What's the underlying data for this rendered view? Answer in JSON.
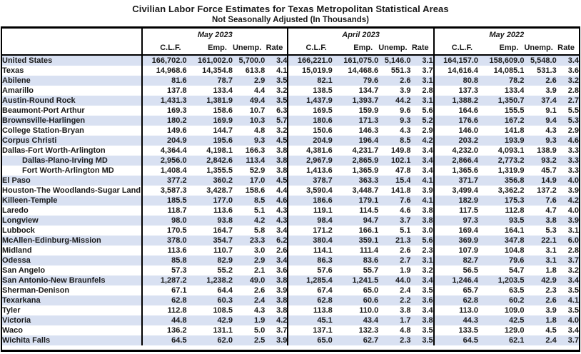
{
  "title": "Civilian Labor Force Estimates for Texas Metropolitan Statistical Areas",
  "subtitle": "Not Seasonally Adjusted (In Thousands)",
  "colors": {
    "row_shade": "#d9e1f2",
    "border": "#000000",
    "text": "#1a1a1a",
    "background": "#ffffff"
  },
  "table": {
    "groups": [
      {
        "label": "May 2023"
      },
      {
        "label": "April 2023"
      },
      {
        "label": "May 2022"
      }
    ],
    "columns": [
      "C.L.F.",
      "Emp.",
      "Unemp.",
      "Rate"
    ],
    "rows": [
      {
        "area": "United States",
        "indent": false,
        "values": [
          [
            "166,702.0",
            "161,002.0",
            "5,700.0",
            "3.4"
          ],
          [
            "166,221.0",
            "161,075.0",
            "5,146.0",
            "3.1"
          ],
          [
            "164,157.0",
            "158,609.0",
            "5,548.0",
            "3.4"
          ]
        ]
      },
      {
        "area": "Texas",
        "indent": false,
        "values": [
          [
            "14,968.6",
            "14,354.8",
            "613.8",
            "4.1"
          ],
          [
            "15,019.9",
            "14,468.6",
            "551.3",
            "3.7"
          ],
          [
            "14,616.4",
            "14,085.1",
            "531.3",
            "3.6"
          ]
        ]
      },
      {
        "area": "Abilene",
        "indent": false,
        "values": [
          [
            "81.6",
            "78.7",
            "2.9",
            "3.5"
          ],
          [
            "82.1",
            "79.6",
            "2.6",
            "3.1"
          ],
          [
            "80.8",
            "78.2",
            "2.6",
            "3.2"
          ]
        ]
      },
      {
        "area": "Amarillo",
        "indent": false,
        "values": [
          [
            "137.8",
            "133.4",
            "4.4",
            "3.2"
          ],
          [
            "138.5",
            "134.7",
            "3.9",
            "2.8"
          ],
          [
            "137.3",
            "133.4",
            "3.9",
            "2.8"
          ]
        ]
      },
      {
        "area": "Austin-Round Rock",
        "indent": false,
        "values": [
          [
            "1,431.3",
            "1,381.9",
            "49.4",
            "3.5"
          ],
          [
            "1,437.9",
            "1,393.7",
            "44.2",
            "3.1"
          ],
          [
            "1,388.2",
            "1,350.7",
            "37.4",
            "2.7"
          ]
        ]
      },
      {
        "area": "Beaumont-Port Arthur",
        "indent": false,
        "values": [
          [
            "169.3",
            "158.6",
            "10.7",
            "6.3"
          ],
          [
            "169.5",
            "159.9",
            "9.6",
            "5.6"
          ],
          [
            "164.6",
            "155.5",
            "9.1",
            "5.5"
          ]
        ]
      },
      {
        "area": "Brownsville-Harlingen",
        "indent": false,
        "values": [
          [
            "180.2",
            "169.9",
            "10.3",
            "5.7"
          ],
          [
            "180.6",
            "171.3",
            "9.3",
            "5.2"
          ],
          [
            "176.6",
            "167.2",
            "9.4",
            "5.3"
          ]
        ]
      },
      {
        "area": "College Station-Bryan",
        "indent": false,
        "values": [
          [
            "149.6",
            "144.7",
            "4.8",
            "3.2"
          ],
          [
            "150.6",
            "146.3",
            "4.3",
            "2.9"
          ],
          [
            "146.0",
            "141.8",
            "4.3",
            "2.9"
          ]
        ]
      },
      {
        "area": "Corpus Christi",
        "indent": false,
        "values": [
          [
            "204.9",
            "195.6",
            "9.3",
            "4.5"
          ],
          [
            "204.9",
            "196.4",
            "8.5",
            "4.2"
          ],
          [
            "203.2",
            "193.9",
            "9.3",
            "4.6"
          ]
        ]
      },
      {
        "area": "Dallas-Fort Worth-Arlington",
        "indent": false,
        "values": [
          [
            "4,364.4",
            "4,198.1",
            "166.3",
            "3.8"
          ],
          [
            "4,381.6",
            "4,231.7",
            "149.8",
            "3.4"
          ],
          [
            "4,232.0",
            "4,093.1",
            "138.9",
            "3.3"
          ]
        ]
      },
      {
        "area": "Dallas-Plano-Irving MD",
        "indent": true,
        "values": [
          [
            "2,956.0",
            "2,842.6",
            "113.4",
            "3.8"
          ],
          [
            "2,967.9",
            "2,865.9",
            "102.1",
            "3.4"
          ],
          [
            "2,866.4",
            "2,773.2",
            "93.2",
            "3.3"
          ]
        ]
      },
      {
        "area": "Fort Worth-Arlington MD",
        "indent": true,
        "values": [
          [
            "1,408.4",
            "1,355.5",
            "52.9",
            "3.8"
          ],
          [
            "1,413.6",
            "1,365.9",
            "47.8",
            "3.4"
          ],
          [
            "1,365.6",
            "1,319.9",
            "45.7",
            "3.3"
          ]
        ]
      },
      {
        "area": "El Paso",
        "indent": false,
        "values": [
          [
            "377.2",
            "360.2",
            "17.0",
            "4.5"
          ],
          [
            "378.7",
            "363.3",
            "15.4",
            "4.1"
          ],
          [
            "371.7",
            "356.8",
            "14.9",
            "4.0"
          ]
        ]
      },
      {
        "area": "Houston-The Woodlands-Sugar Land",
        "indent": false,
        "values": [
          [
            "3,587.3",
            "3,428.7",
            "158.6",
            "4.4"
          ],
          [
            "3,590.4",
            "3,448.7",
            "141.8",
            "3.9"
          ],
          [
            "3,499.4",
            "3,362.2",
            "137.2",
            "3.9"
          ]
        ]
      },
      {
        "area": "Killeen-Temple",
        "indent": false,
        "values": [
          [
            "185.5",
            "177.0",
            "8.5",
            "4.6"
          ],
          [
            "186.6",
            "179.1",
            "7.6",
            "4.1"
          ],
          [
            "182.9",
            "175.3",
            "7.6",
            "4.2"
          ]
        ]
      },
      {
        "area": "Laredo",
        "indent": false,
        "values": [
          [
            "118.7",
            "113.6",
            "5.1",
            "4.3"
          ],
          [
            "119.1",
            "114.5",
            "4.6",
            "3.8"
          ],
          [
            "117.5",
            "112.8",
            "4.7",
            "4.0"
          ]
        ]
      },
      {
        "area": "Longview",
        "indent": false,
        "values": [
          [
            "98.0",
            "93.8",
            "4.2",
            "4.3"
          ],
          [
            "98.4",
            "94.7",
            "3.7",
            "3.8"
          ],
          [
            "97.3",
            "93.5",
            "3.8",
            "3.9"
          ]
        ]
      },
      {
        "area": "Lubbock",
        "indent": false,
        "values": [
          [
            "170.5",
            "164.7",
            "5.8",
            "3.4"
          ],
          [
            "171.2",
            "166.1",
            "5.1",
            "3.0"
          ],
          [
            "169.4",
            "164.1",
            "5.3",
            "3.1"
          ]
        ]
      },
      {
        "area": "McAllen-Edinburg-Mission",
        "indent": false,
        "values": [
          [
            "378.0",
            "354.7",
            "23.3",
            "6.2"
          ],
          [
            "380.4",
            "359.1",
            "21.3",
            "5.6"
          ],
          [
            "369.9",
            "347.8",
            "22.1",
            "6.0"
          ]
        ]
      },
      {
        "area": "Midland",
        "indent": false,
        "values": [
          [
            "113.6",
            "110.7",
            "3.0",
            "2.6"
          ],
          [
            "114.1",
            "111.4",
            "2.6",
            "2.3"
          ],
          [
            "107.9",
            "104.8",
            "3.1",
            "2.8"
          ]
        ]
      },
      {
        "area": "Odessa",
        "indent": false,
        "values": [
          [
            "85.8",
            "82.9",
            "2.9",
            "3.4"
          ],
          [
            "86.3",
            "83.6",
            "2.7",
            "3.1"
          ],
          [
            "82.7",
            "79.6",
            "3.1",
            "3.7"
          ]
        ]
      },
      {
        "area": "San Angelo",
        "indent": false,
        "values": [
          [
            "57.3",
            "55.2",
            "2.1",
            "3.6"
          ],
          [
            "57.6",
            "55.7",
            "1.9",
            "3.2"
          ],
          [
            "56.5",
            "54.7",
            "1.8",
            "3.2"
          ]
        ]
      },
      {
        "area": "San Antonio-New Braunfels",
        "indent": false,
        "values": [
          [
            "1,287.2",
            "1,238.2",
            "49.0",
            "3.8"
          ],
          [
            "1,285.4",
            "1,241.5",
            "44.0",
            "3.4"
          ],
          [
            "1,246.4",
            "1,203.5",
            "42.9",
            "3.4"
          ]
        ]
      },
      {
        "area": "Sherman-Denison",
        "indent": false,
        "values": [
          [
            "67.1",
            "64.4",
            "2.6",
            "3.9"
          ],
          [
            "67.4",
            "65.0",
            "2.4",
            "3.5"
          ],
          [
            "65.7",
            "63.5",
            "2.3",
            "3.5"
          ]
        ]
      },
      {
        "area": "Texarkana",
        "indent": false,
        "values": [
          [
            "62.8",
            "60.3",
            "2.4",
            "3.8"
          ],
          [
            "62.8",
            "60.6",
            "2.2",
            "3.6"
          ],
          [
            "62.8",
            "60.2",
            "2.6",
            "4.1"
          ]
        ]
      },
      {
        "area": "Tyler",
        "indent": false,
        "values": [
          [
            "112.8",
            "108.5",
            "4.3",
            "3.8"
          ],
          [
            "113.8",
            "110.0",
            "3.8",
            "3.4"
          ],
          [
            "113.0",
            "109.0",
            "3.9",
            "3.5"
          ]
        ]
      },
      {
        "area": "Victoria",
        "indent": false,
        "values": [
          [
            "44.8",
            "42.9",
            "1.9",
            "4.2"
          ],
          [
            "45.1",
            "43.4",
            "1.7",
            "3.8"
          ],
          [
            "44.3",
            "42.5",
            "1.8",
            "4.0"
          ]
        ]
      },
      {
        "area": "Waco",
        "indent": false,
        "values": [
          [
            "136.2",
            "131.1",
            "5.0",
            "3.7"
          ],
          [
            "137.1",
            "132.3",
            "4.8",
            "3.5"
          ],
          [
            "133.5",
            "129.0",
            "4.5",
            "3.4"
          ]
        ]
      },
      {
        "area": "Wichita Falls",
        "indent": false,
        "values": [
          [
            "64.5",
            "62.0",
            "2.5",
            "3.9"
          ],
          [
            "65.0",
            "62.7",
            "2.3",
            "3.5"
          ],
          [
            "64.5",
            "62.1",
            "2.4",
            "3.7"
          ]
        ]
      }
    ]
  }
}
